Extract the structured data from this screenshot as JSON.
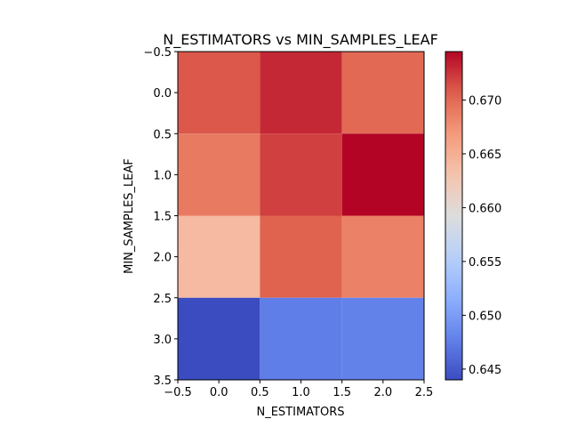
{
  "chart_data": {
    "type": "heatmap",
    "title": "N_ESTIMATORS vs MIN_SAMPLES_LEAF",
    "xlabel": "N_ESTIMATORS",
    "ylabel": "MIN_SAMPLES_LEAF",
    "x_index": [
      0,
      1,
      2
    ],
    "y_index": [
      0,
      1,
      2,
      3
    ],
    "xlim": [
      -0.5,
      2.5
    ],
    "ylim": [
      3.5,
      -0.5
    ],
    "x_ticks": [
      "−0.5",
      "0.0",
      "0.5",
      "1.0",
      "1.5",
      "2.0",
      "2.5"
    ],
    "y_ticks": [
      "−0.5",
      "0.0",
      "0.5",
      "1.0",
      "1.5",
      "2.0",
      "2.5",
      "3.0",
      "3.5"
    ],
    "values": [
      [
        0.671,
        0.673,
        0.67
      ],
      [
        0.669,
        0.672,
        0.6745
      ],
      [
        0.664,
        0.6705,
        0.6685
      ],
      [
        0.644,
        0.6475,
        0.6478
      ]
    ],
    "colorbar": {
      "cmap": "coolwarm",
      "vmin": 0.644,
      "vmax": 0.6745,
      "ticks": [
        "0.645",
        "0.650",
        "0.655",
        "0.660",
        "0.665",
        "0.670"
      ],
      "tick_values": [
        0.645,
        0.65,
        0.655,
        0.66,
        0.665,
        0.67
      ]
    }
  }
}
